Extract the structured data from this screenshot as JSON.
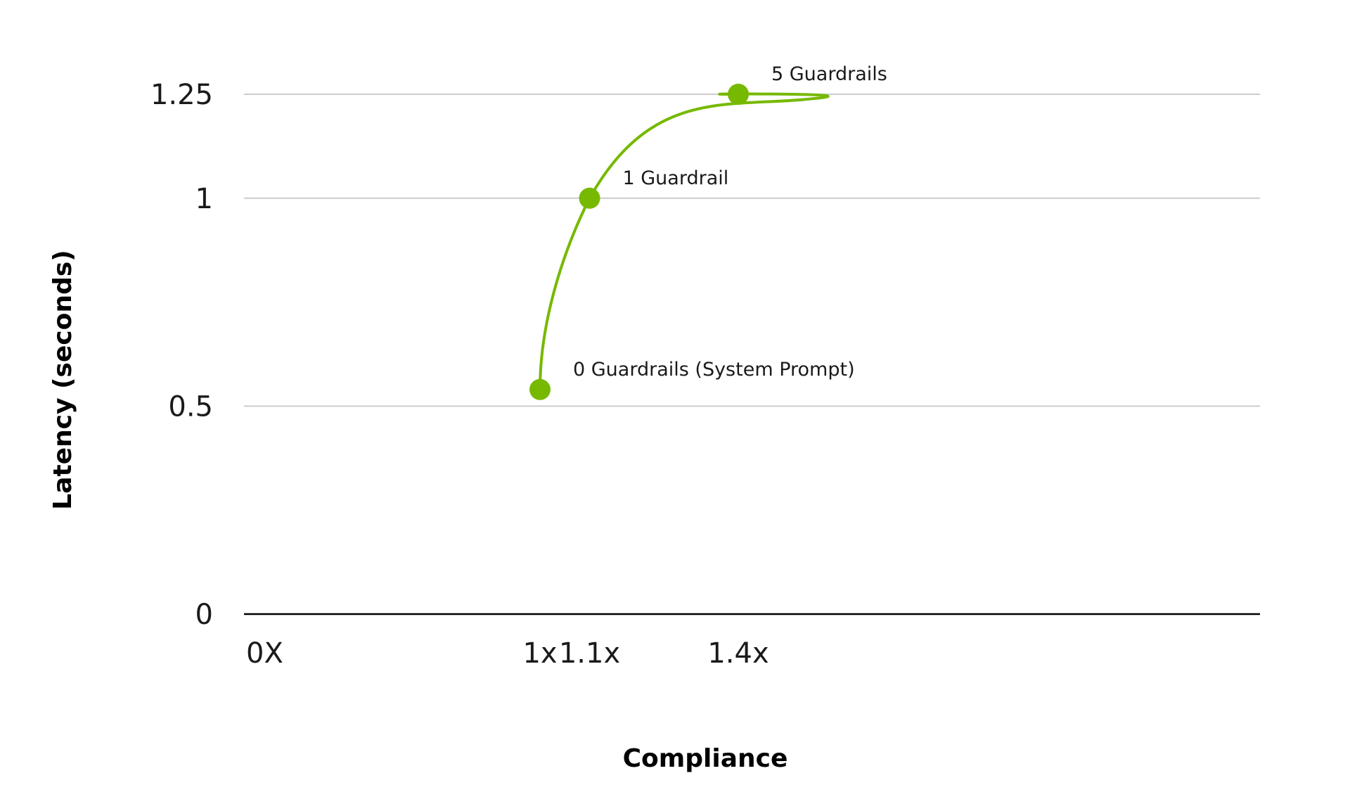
{
  "chart_data": {
    "type": "line",
    "xlabel": "Compliance",
    "ylabel": "Latency (seconds)",
    "x": [
      1.0,
      1.1,
      1.4
    ],
    "x_tick_labels": [
      {
        "value": 0,
        "label": "0X"
      },
      {
        "value": 1.0,
        "label": "1x"
      },
      {
        "value": 1.1,
        "label": "1.1x"
      },
      {
        "value": 1.4,
        "label": "1.4x"
      }
    ],
    "y_ticks": [
      {
        "value": 0,
        "label": "0"
      },
      {
        "value": 0.5,
        "label": "0.5"
      },
      {
        "value": 1,
        "label": "1"
      },
      {
        "value": 1.25,
        "label": "1.25"
      }
    ],
    "ylim": [
      0,
      1.25
    ],
    "grid": true,
    "series": [
      {
        "color": "#76b900",
        "points": [
          {
            "x": 1.0,
            "y": 0.54,
            "label": "0 Guardrails (System Prompt)"
          },
          {
            "x": 1.1,
            "y": 1.0,
            "label": "1 Guardrail"
          },
          {
            "x": 1.4,
            "y": 1.25,
            "label": "5 Guardrails"
          }
        ]
      }
    ]
  },
  "colors": {
    "line": "#76b900",
    "grid": "#cccccc",
    "axis": "#000000"
  }
}
